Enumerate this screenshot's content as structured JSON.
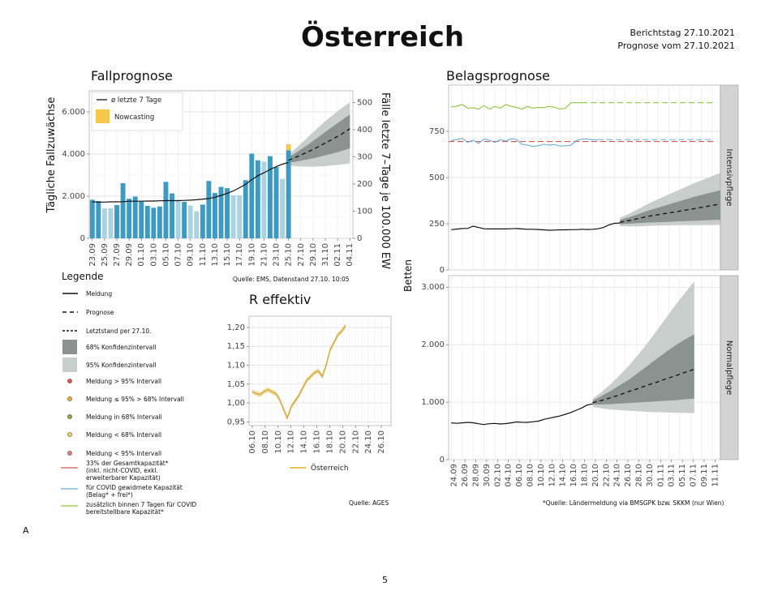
{
  "header": {
    "title": "Österreich",
    "report_day": "Berichtstag 27.10.2021",
    "forecast_from": "Prognose vom 27.10.2021"
  },
  "panel_labels": {
    "fall": "Fallprognose",
    "belag": "Belagsprognose",
    "reff": "R effektiv"
  },
  "sources": {
    "fall": "Quelle: EMS, Datenstand 27.10. 10:05",
    "reff": "Quelle: AGES",
    "belag": "*Quelle: Ländermeldung via BMSGPK bzw. SKKM (nur Wien)"
  },
  "footer": {
    "corner_letter": "A",
    "page_number": "5"
  },
  "legend": {
    "title": "Legende",
    "items": {
      "meldung": "Meldung",
      "prognose": "Prognose",
      "letztstand": "Letztstand per 27.10.",
      "ci68": "68% Konfidenzintervall",
      "ci95": "95% Konfidenzintervall",
      "m_gt95": "Meldung > 95% Intervall",
      "m_95_68": "Meldung ≤ 95% > 68% Intervall",
      "m_in68": "Meldung in 68% Intervall",
      "m_lt68": "Meldung < 68% Intervall",
      "m_lt95": "Meldung < 95% Intervall",
      "cap33_1": "33% der Gesamtkapazität*",
      "cap33_2": "(inkl. nicht-COVID, exkl.",
      "cap33_3": "erweiterbarer Kapazität)",
      "capcov_1": "für COVID gewidmete Kapazität",
      "capcov_2": "(Belag* + frei*)",
      "capadd_1": "zusätzlich binnen 7 Tagen für COVID",
      "capadd_2": "bereitstellbare Kapazität*"
    }
  },
  "colors": {
    "bar_reported": "#3d9ac2",
    "bar_light": "#a9d3e3",
    "nowcast": "#f5c84c",
    "ci68": "#8b9391",
    "ci95": "#c7cecc",
    "cap33": "#d9534f",
    "capcov": "#6baed6",
    "capadd": "#8cc63f",
    "reff": "#e6c35c",
    "strip": "#d3d3d3"
  },
  "chart_data": [
    {
      "id": "fallprognose",
      "type": "bar",
      "ylabel": "Tägliche Fallzuwächse",
      "y2label": "Fälle letzte 7–Tage je 100.000 EW",
      "ylim": [
        0,
        7000
      ],
      "y_ticks": [
        "0",
        "2.000",
        "4.000",
        "6.000"
      ],
      "y2_ticks": [
        "0",
        "100",
        "200",
        "300",
        "400",
        "500"
      ],
      "x_ticks": [
        "23.09",
        "25.09",
        "27.09",
        "29.09",
        "01.10",
        "03.10",
        "05.10",
        "07.10",
        "09.10",
        "11.10",
        "13.10",
        "15.10",
        "17.10",
        "19.10",
        "21.10",
        "23.10",
        "25.10",
        "27.10",
        "29.10",
        "31.10",
        "02.11",
        "04.11"
      ],
      "legend": {
        "line": "ø letzte 7 Tage",
        "nowcast": "Nowcasting"
      },
      "bars": [
        1830,
        1770,
        1420,
        1430,
        1580,
        2620,
        1880,
        1980,
        1740,
        1540,
        1450,
        1510,
        2680,
        2130,
        1820,
        1730,
        1560,
        1290,
        1600,
        2720,
        2150,
        2440,
        2380,
        2040,
        2040,
        2760,
        4020,
        3700,
        3640,
        3900,
        3380,
        2820,
        4180
      ],
      "bar_light_flags": [
        0,
        0,
        1,
        1,
        0,
        0,
        0,
        0,
        0,
        0,
        0,
        0,
        0,
        0,
        1,
        0,
        1,
        1,
        0,
        0,
        0,
        0,
        0,
        1,
        1,
        0,
        0,
        0,
        1,
        0,
        0,
        1,
        0
      ],
      "nowcast_top": 4460,
      "avg_7d": [
        1730,
        1720,
        1720,
        1730,
        1730,
        1740,
        1760,
        1760,
        1760,
        1770,
        1770,
        1780,
        1790,
        1790,
        1790,
        1800,
        1810,
        1830,
        1860,
        1890,
        1950,
        2040,
        2130,
        2250,
        2400,
        2560,
        2780,
        2970,
        3110,
        3270,
        3400,
        3520,
        3600
      ],
      "forecast": {
        "x_start_index": 32,
        "median": [
          3700,
          3880,
          4060,
          4260,
          4480,
          4700,
          4930,
          5200
        ],
        "ci68_low": [
          3580,
          3650,
          3730,
          3810,
          3920,
          4020,
          4140,
          4270
        ],
        "ci68_high": [
          3830,
          4100,
          4380,
          4680,
          4990,
          5290,
          5590,
          5880
        ],
        "ci95_low": [
          3460,
          3420,
          3400,
          3400,
          3420,
          3460,
          3500,
          3560
        ],
        "ci95_high": [
          3950,
          4330,
          4720,
          5110,
          5490,
          5840,
          6170,
          6450
        ]
      }
    },
    {
      "id": "belag_intensiv",
      "type": "line",
      "facet": "Intensivpflege",
      "ylabel": "Betten",
      "ylim": [
        0,
        1000
      ],
      "y_ticks": [
        "0",
        "250",
        "500",
        "750"
      ],
      "meldung": [
        218,
        221,
        224,
        225,
        237,
        230,
        223,
        222,
        222,
        222,
        222,
        223,
        224,
        222,
        220,
        220,
        219,
        217,
        215,
        216,
        217,
        217,
        218,
        218,
        220,
        219,
        220,
        223,
        230,
        244,
        252,
        254
      ],
      "forecast_median": [
        258,
        267,
        278,
        290,
        298,
        306,
        314,
        323,
        331,
        340,
        349,
        358
      ],
      "ci68_low": [
        248,
        250,
        253,
        256,
        258,
        260,
        262,
        264,
        266,
        268,
        270,
        272
      ],
      "ci68_high": [
        270,
        285,
        302,
        320,
        335,
        350,
        365,
        380,
        395,
        408,
        420,
        432
      ],
      "ci95_low": [
        238,
        236,
        236,
        238,
        240,
        241,
        242,
        242,
        242,
        243,
        243,
        244
      ],
      "ci95_high": [
        282,
        304,
        330,
        356,
        380,
        402,
        424,
        446,
        468,
        488,
        508,
        528
      ],
      "cap33": 695,
      "capcov": [
        700,
        705,
        712,
        690,
        702,
        685,
        708,
        702,
        690,
        705,
        698,
        710,
        705,
        680,
        675,
        668,
        672,
        680,
        676,
        678,
        670,
        672,
        675,
        700,
        708,
        708,
        705,
        705
      ],
      "capadd": [
        882,
        885,
        895,
        875,
        878,
        870,
        890,
        870,
        885,
        875,
        895,
        885,
        880,
        870,
        885,
        875,
        880,
        878,
        885,
        880,
        870,
        875,
        905,
        905,
        905
      ]
    },
    {
      "id": "belag_normal",
      "type": "line",
      "facet": "Normalpflege",
      "ylim": [
        0,
        3200
      ],
      "y_ticks": [
        "0",
        "1.000",
        "2.000",
        "3.000"
      ],
      "x_ticks": [
        "24.09",
        "26.09",
        "28.09",
        "30.09",
        "02.10",
        "04.10",
        "06.10",
        "08.10",
        "10.10",
        "12.10",
        "14.10",
        "16.10",
        "18.10",
        "20.10",
        "22.10",
        "24.10",
        "26.10",
        "28.10",
        "30.10",
        "01.11",
        "03.11",
        "05.11",
        "07.11",
        "09.11",
        "11.11"
      ],
      "meldung": [
        640,
        632,
        640,
        648,
        642,
        625,
        610,
        625,
        630,
        620,
        628,
        640,
        655,
        650,
        648,
        658,
        670,
        700,
        720,
        740,
        760,
        790,
        820,
        860,
        900,
        950,
        970
      ],
      "forecast_median": [
        990,
        1030,
        1080,
        1130,
        1190,
        1240,
        1300,
        1350,
        1410,
        1460,
        1520,
        1570
      ],
      "ci68_low": [
        960,
        960,
        965,
        975,
        985,
        995,
        1005,
        1015,
        1025,
        1035,
        1050,
        1060
      ],
      "ci68_high": [
        1025,
        1110,
        1200,
        1300,
        1400,
        1520,
        1640,
        1760,
        1880,
        1990,
        2090,
        2180
      ],
      "ci95_low": [
        920,
        890,
        870,
        860,
        850,
        840,
        830,
        825,
        820,
        815,
        812,
        810
      ],
      "ci95_high": [
        1060,
        1180,
        1320,
        1480,
        1650,
        1840,
        2040,
        2260,
        2480,
        2700,
        2900,
        3100
      ]
    },
    {
      "id": "r_effektiv",
      "type": "line",
      "ylim": [
        0.94,
        1.23
      ],
      "y_ticks": [
        "0,95",
        "1,00",
        "1,05",
        "1,10",
        "1,15",
        "1,20"
      ],
      "x_ticks": [
        "06.10",
        "08.10",
        "10.10",
        "12.10",
        "14.10",
        "16.10",
        "18.10",
        "20.10",
        "22.10",
        "24.10",
        "26.10"
      ],
      "series": [
        {
          "name": "Österreich",
          "values": [
            1.03,
            1.025,
            1.022,
            1.03,
            1.035,
            1.03,
            1.025,
            1.01,
            0.985,
            0.96,
            0.99,
            1.005,
            1.02,
            1.04,
            1.06,
            1.07,
            1.08,
            1.085,
            1.07,
            1.1,
            1.14,
            1.16,
            1.18,
            1.19,
            1.205
          ]
        }
      ]
    }
  ]
}
